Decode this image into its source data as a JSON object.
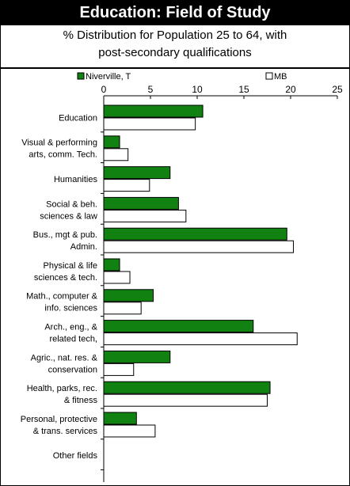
{
  "header": {
    "title": "Education: Field of Study",
    "subtitle_line1": "% Distribution for Population 25 to 64, with",
    "subtitle_line2": "post-secondary qualifications"
  },
  "colors": {
    "series1": "#118211",
    "series2": "#ffffff",
    "outline": "#000000"
  },
  "chart_data": {
    "type": "bar",
    "orientation": "horizontal",
    "categories": [
      [
        "Education"
      ],
      [
        "Visual & performing",
        "arts, comm. Tech."
      ],
      [
        "Humanities"
      ],
      [
        "Social & beh.",
        "sciences & law"
      ],
      [
        "Bus., mgt & pub.",
        "Admin."
      ],
      [
        "Physical & life",
        "sciences & tech."
      ],
      [
        "Math., computer &",
        "info. sciences"
      ],
      [
        "Arch., eng., &",
        "related tech,"
      ],
      [
        "Agric., nat. res. &",
        "conservation"
      ],
      [
        "Health, parks, rec.",
        "& fitness"
      ],
      [
        "Personal, protective",
        "& trans. services"
      ],
      [
        "Other fields"
      ]
    ],
    "series": [
      {
        "name": "Niverville, T",
        "values": [
          10.6,
          1.7,
          7.1,
          8.0,
          19.6,
          1.7,
          5.3,
          16.0,
          7.1,
          17.8,
          3.5,
          0
        ]
      },
      {
        "name": "MB",
        "values": [
          9.8,
          2.6,
          4.9,
          8.8,
          20.3,
          2.8,
          4.0,
          20.7,
          3.2,
          17.5,
          5.5,
          0
        ]
      }
    ],
    "xlim": [
      0,
      25
    ],
    "xticks": [
      "0",
      "5",
      "10",
      "15",
      "20",
      "25"
    ],
    "legend_position": "top",
    "grid": false
  }
}
